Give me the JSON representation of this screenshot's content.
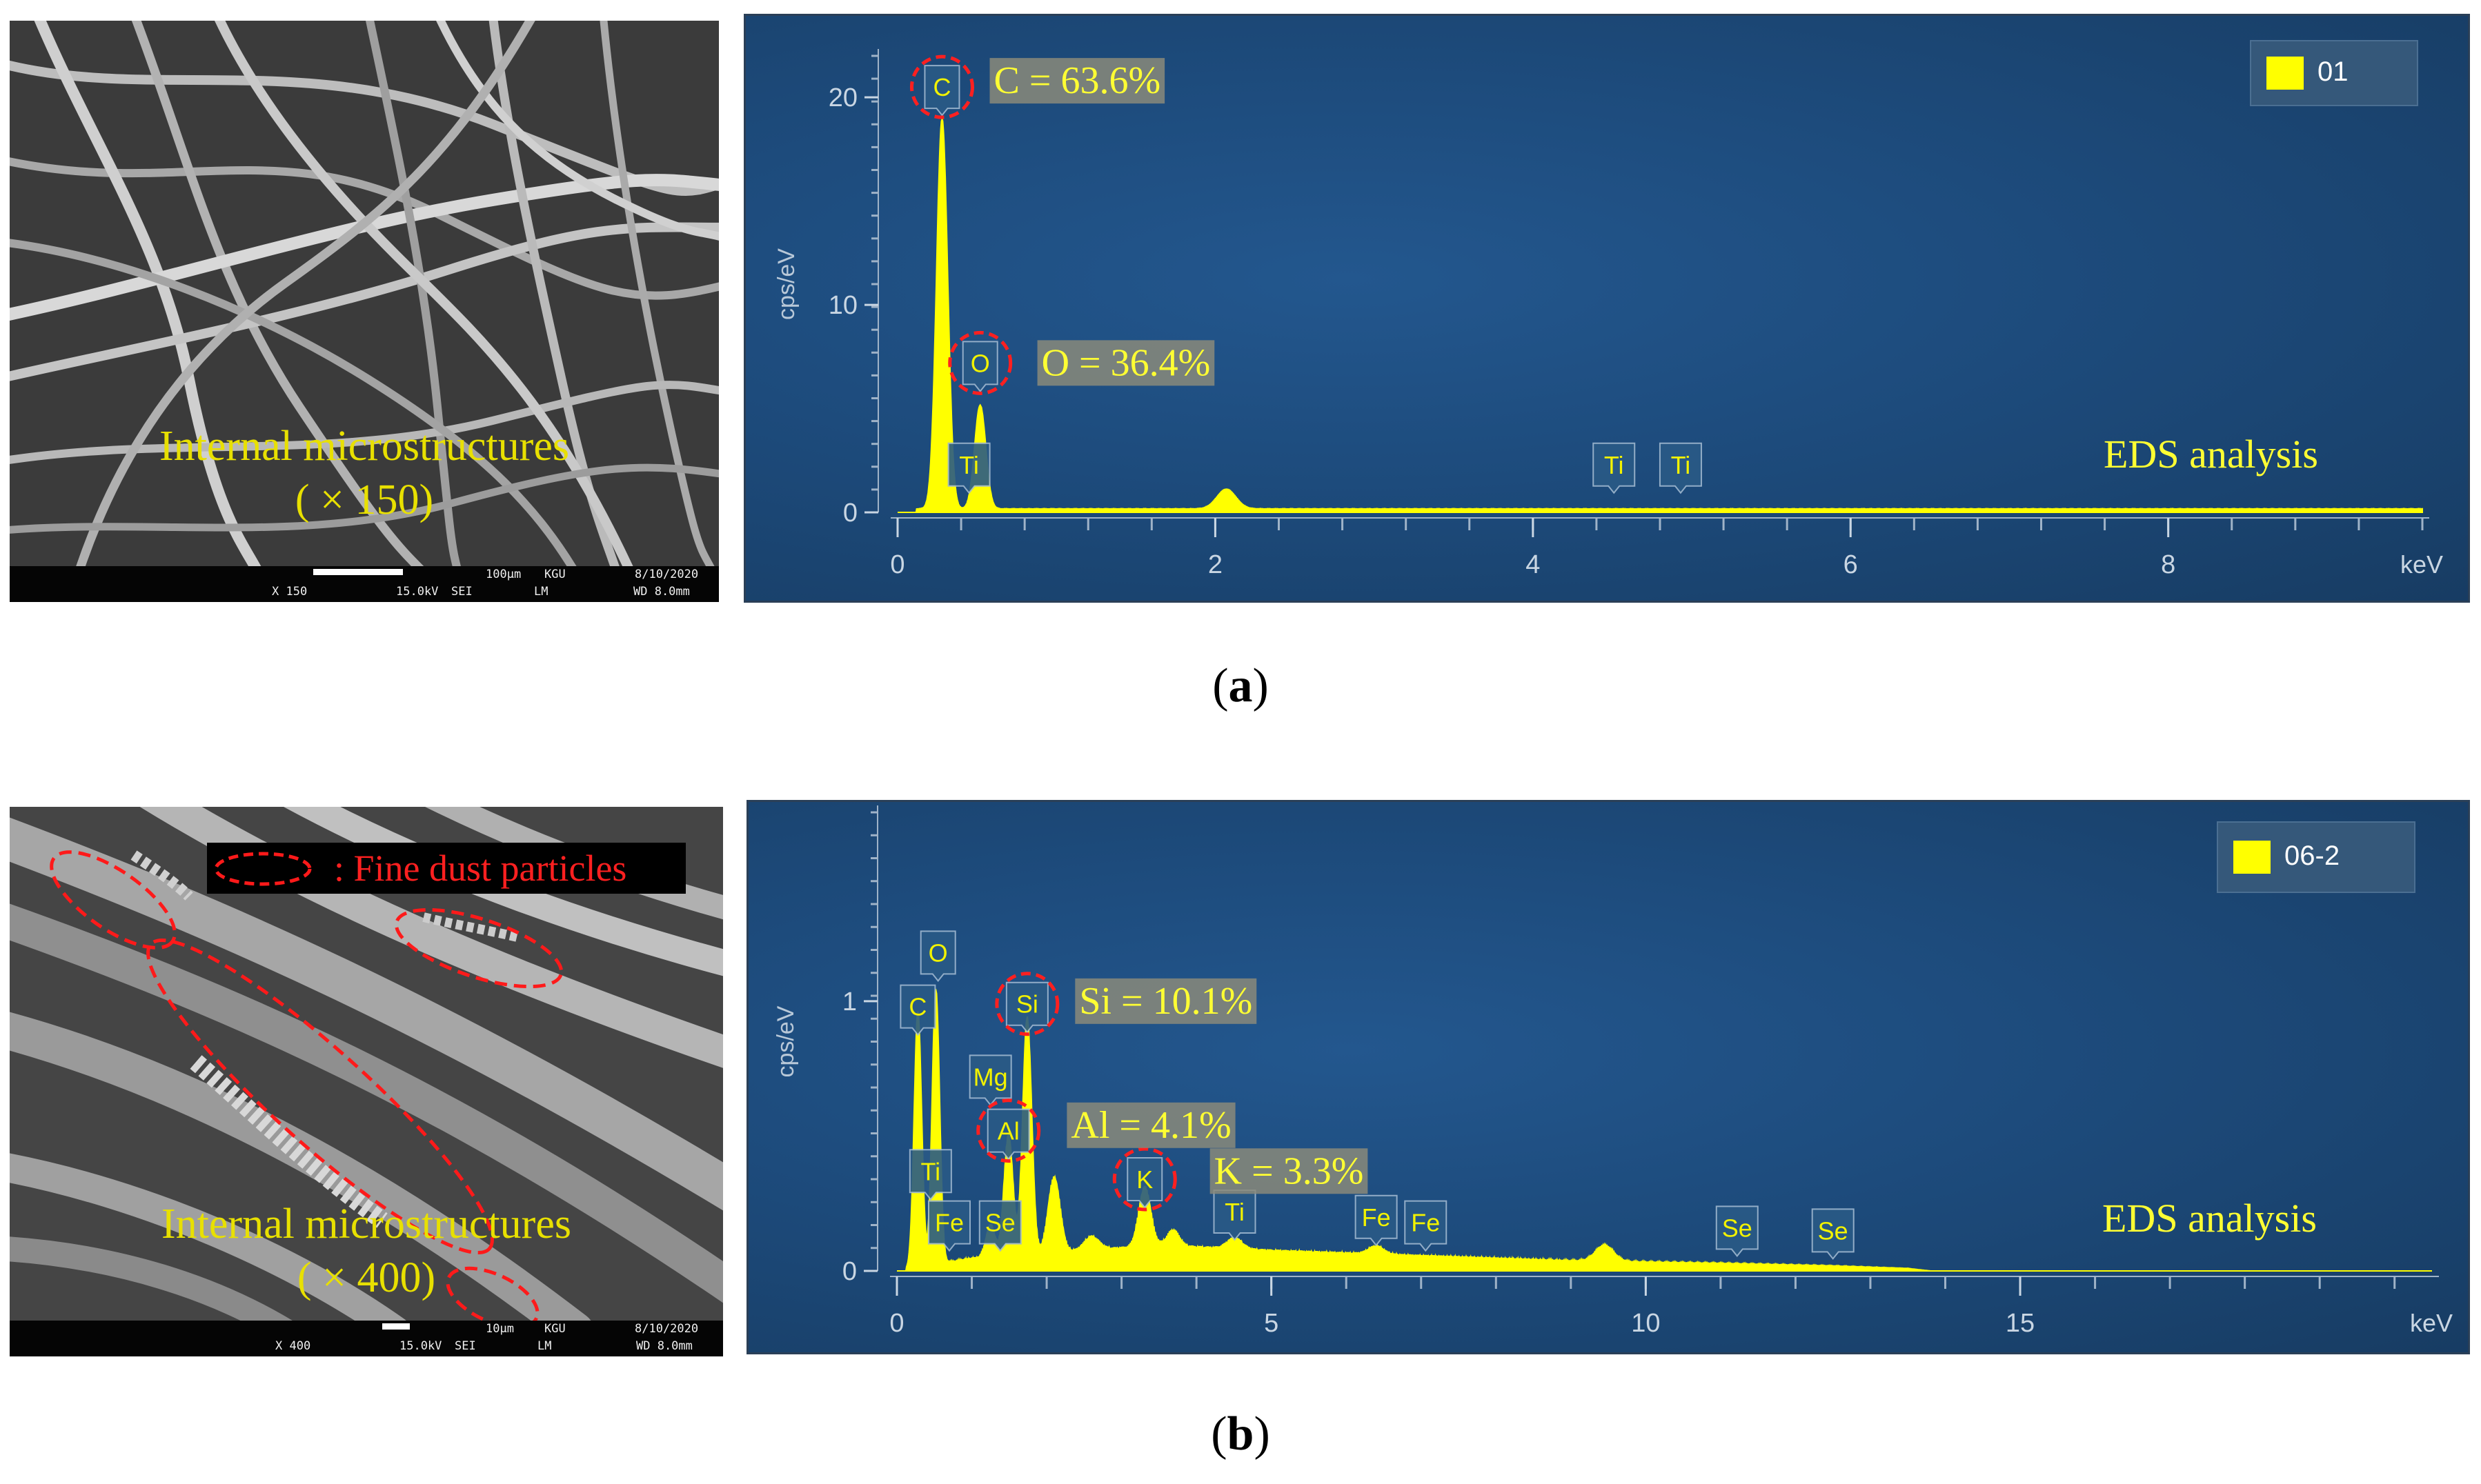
{
  "panels": [
    {
      "caption": "a",
      "sem": {
        "label_line1": "Internal microstructures",
        "label_line2": "( × 150)",
        "bar": {
          "magnification": "X 150",
          "scale": "100µm",
          "lab": "KGU",
          "date": "8/10/2020",
          "voltage": "15.0kV",
          "detector": "SEI",
          "mode": "LM",
          "wd": "WD 8.0mm"
        }
      },
      "eds": {
        "title": "EDS analysis",
        "legend": "01",
        "annotations": [
          {
            "element": "C",
            "text": "C = 63.6%"
          },
          {
            "element": "O",
            "text": "O =  36.4%"
          }
        ]
      }
    },
    {
      "caption": "b",
      "sem": {
        "dust_legend": ": Fine dust particles",
        "label_line1": "Internal microstructures",
        "label_line2": "( × 400)",
        "bar": {
          "magnification": "X 400",
          "scale": "10µm",
          "lab": "KGU",
          "date": "8/10/2020",
          "voltage": "15.0kV",
          "detector": "SEI",
          "mode": "LM",
          "wd": "WD 8.0mm"
        }
      },
      "eds": {
        "title": "EDS analysis",
        "legend": "06-2",
        "annotations": [
          {
            "element": "Si",
            "text": "Si = 10.1%"
          },
          {
            "element": "Al",
            "text": "Al = 4.1%"
          },
          {
            "element": "K",
            "text": "K = 3.3%"
          }
        ]
      }
    }
  ],
  "chart_data": [
    {
      "type": "line",
      "panel": "a",
      "title": "EDS analysis",
      "xlabel": "keV",
      "ylabel": "cps/eV",
      "xlim": [
        0,
        9.6
      ],
      "ylim": [
        0,
        22
      ],
      "xticks": [
        0,
        2,
        4,
        6,
        8
      ],
      "yticks": [
        0,
        10,
        20
      ],
      "legend": "01",
      "line_color": "#ffff00",
      "peaks": [
        {
          "x": 0.28,
          "y": 18.8,
          "w": 0.035
        },
        {
          "x": 0.52,
          "y": 5.0,
          "w": 0.035
        },
        {
          "x": 2.07,
          "y": 0.95,
          "w": 0.06
        }
      ],
      "background_level": 0.18,
      "background_end": 9.6,
      "element_labels": [
        {
          "element": "C",
          "x": 0.28,
          "y": 20.5,
          "highlight": true
        },
        {
          "element": "O",
          "x": 0.52,
          "y": 7.2,
          "highlight": true
        },
        {
          "element": "Ti",
          "x": 0.45,
          "y": 2.3,
          "highlight": false
        },
        {
          "element": "Ti",
          "x": 4.51,
          "y": 2.3,
          "highlight": false
        },
        {
          "element": "Ti",
          "x": 4.93,
          "y": 2.3,
          "highlight": false
        }
      ],
      "annotations": [
        {
          "text": "C = 63.6%",
          "x": 0.58,
          "y": 20.8
        },
        {
          "text": "O =  36.4%",
          "x": 0.88,
          "y": 7.2
        }
      ]
    },
    {
      "type": "line",
      "panel": "b",
      "title": "EDS analysis",
      "xlabel": "keV",
      "ylabel": "cps/eV",
      "xlim": [
        0,
        20.5
      ],
      "ylim": [
        0,
        1.7
      ],
      "xticks": [
        0,
        5,
        10,
        15
      ],
      "yticks": [
        0,
        1
      ],
      "legend": "06-2",
      "line_color": "#ffff00",
      "peaks": [
        {
          "x": 0.28,
          "y": 0.95,
          "w": 0.05
        },
        {
          "x": 0.52,
          "y": 1.02,
          "w": 0.05
        },
        {
          "x": 1.25,
          "y": 0.12,
          "w": 0.06
        },
        {
          "x": 1.49,
          "y": 0.45,
          "w": 0.06
        },
        {
          "x": 1.74,
          "y": 0.88,
          "w": 0.06
        },
        {
          "x": 2.1,
          "y": 0.28,
          "w": 0.08
        },
        {
          "x": 2.6,
          "y": 0.05,
          "w": 0.1
        },
        {
          "x": 3.31,
          "y": 0.22,
          "w": 0.08
        },
        {
          "x": 3.69,
          "y": 0.06,
          "w": 0.08
        },
        {
          "x": 4.51,
          "y": 0.04,
          "w": 0.1
        },
        {
          "x": 6.4,
          "y": 0.03,
          "w": 0.1
        },
        {
          "x": 9.45,
          "y": 0.06,
          "w": 0.12
        }
      ],
      "background": [
        [
          0.0,
          0.0
        ],
        [
          1.0,
          0.05
        ],
        [
          2.5,
          0.08
        ],
        [
          3.5,
          0.1
        ],
        [
          5.0,
          0.08
        ],
        [
          7.0,
          0.06
        ],
        [
          9.0,
          0.04
        ],
        [
          11.0,
          0.03
        ],
        [
          12.5,
          0.02
        ],
        [
          13.5,
          0.01
        ],
        [
          13.8,
          0.0
        ]
      ],
      "element_labels": [
        {
          "element": "O",
          "x": 0.55,
          "y": 1.18,
          "highlight": false
        },
        {
          "element": "C",
          "x": 0.28,
          "y": 0.98,
          "highlight": false
        },
        {
          "element": "Si",
          "x": 1.74,
          "y": 0.99,
          "highlight": true
        },
        {
          "element": "Mg",
          "x": 1.25,
          "y": 0.72,
          "highlight": false
        },
        {
          "element": "Al",
          "x": 1.49,
          "y": 0.52,
          "highlight": true
        },
        {
          "element": "K",
          "x": 3.31,
          "y": 0.34,
          "highlight": true
        },
        {
          "element": "Ti",
          "x": 0.45,
          "y": 0.37,
          "highlight": false
        },
        {
          "element": "Fe",
          "x": 0.7,
          "y": 0.18,
          "highlight": false
        },
        {
          "element": "Se",
          "x": 1.38,
          "y": 0.18,
          "highlight": false
        },
        {
          "element": "Ti",
          "x": 4.51,
          "y": 0.22,
          "highlight": false
        },
        {
          "element": "Fe",
          "x": 6.4,
          "y": 0.2,
          "highlight": false
        },
        {
          "element": "Fe",
          "x": 7.06,
          "y": 0.18,
          "highlight": false
        },
        {
          "element": "Se",
          "x": 11.22,
          "y": 0.16,
          "highlight": false
        },
        {
          "element": "Se",
          "x": 12.5,
          "y": 0.15,
          "highlight": false
        }
      ],
      "annotations": [
        {
          "text": "Si = 10.1%",
          "x": 2.38,
          "y": 1.0
        },
        {
          "text": "Al = 4.1%",
          "x": 2.27,
          "y": 0.54
        },
        {
          "text": "K = 3.3%",
          "x": 4.18,
          "y": 0.37
        }
      ]
    }
  ]
}
